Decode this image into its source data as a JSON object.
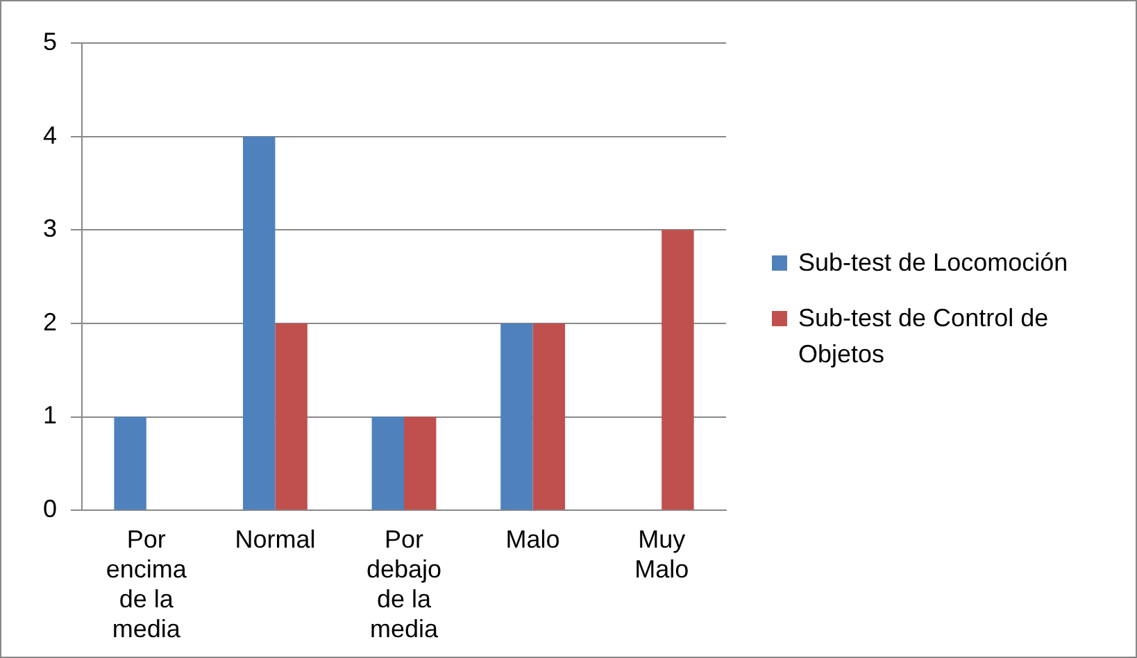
{
  "chart_data": {
    "type": "bar",
    "categories": [
      "Por encima de la media",
      "Normal",
      "Por debajo de la media",
      "Malo",
      "Muy Malo"
    ],
    "series": [
      {
        "name": "Sub-test de Locomoción",
        "color": "#4f81bd",
        "values": [
          1,
          4,
          1,
          2,
          0
        ]
      },
      {
        "name": "Sub-test de Control de Objetos",
        "color": "#c0504d",
        "values": [
          0,
          2,
          1,
          2,
          3
        ]
      }
    ],
    "ylim": [
      0,
      5
    ],
    "yticks": [
      0,
      1,
      2,
      3,
      4,
      5
    ],
    "grid": "y",
    "legend": "right"
  }
}
